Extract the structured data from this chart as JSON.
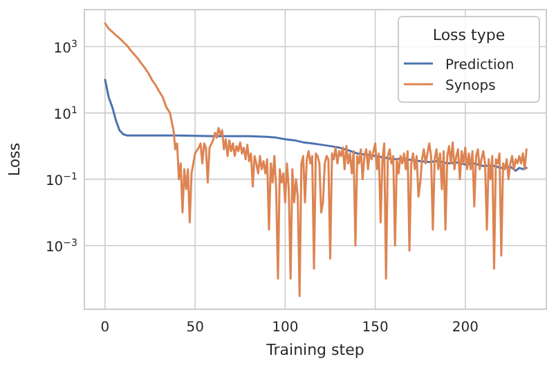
{
  "chart_data": {
    "type": "line",
    "xlabel": "Training step",
    "ylabel": "Loss",
    "legend_title": "Loss type",
    "legend": "top right",
    "grid": true,
    "log": "y",
    "xlim": [
      -11.5,
      245
    ],
    "xticks": [
      0,
      50,
      100,
      150,
      200
    ],
    "ylim": [
      1.2e-05,
      13000
    ],
    "yticks": [
      {
        "value": 0.001,
        "label": "10$^{−3}$"
      },
      {
        "value": 0.1,
        "label": "10$^{−1}$"
      },
      {
        "value": 10,
        "label": "10$^{1}$"
      },
      {
        "value": 1000,
        "label": "10$^{3}$"
      }
    ],
    "series": [
      {
        "name": "Prediction",
        "color": "#4c72b0",
        "x": [
          0,
          2,
          4,
          6,
          8,
          10,
          12,
          16,
          20,
          30,
          40,
          50,
          60,
          70,
          80,
          90,
          95,
          100,
          105,
          110,
          115,
          120,
          125,
          130,
          135,
          140,
          145,
          150,
          155,
          160,
          165,
          170,
          175,
          180,
          185,
          190,
          195,
          200,
          205,
          210,
          215,
          220,
          225,
          228,
          230,
          232,
          234
        ],
        "values": [
          100,
          30,
          15,
          6,
          3,
          2.3,
          2.1,
          2.1,
          2.1,
          2.1,
          2.1,
          2.05,
          2,
          2,
          2,
          1.9,
          1.8,
          1.6,
          1.5,
          1.3,
          1.2,
          1.1,
          1,
          0.9,
          0.75,
          0.6,
          0.55,
          0.5,
          0.45,
          0.4,
          0.42,
          0.38,
          0.35,
          0.33,
          0.36,
          0.3,
          0.32,
          0.28,
          0.3,
          0.25,
          0.26,
          0.22,
          0.24,
          0.18,
          0.22,
          0.2,
          0.22
        ]
      },
      {
        "name": "Synops",
        "color": "#dd8452",
        "x": [
          0,
          2,
          4,
          6,
          8,
          10,
          12,
          14,
          16,
          18,
          20,
          22,
          24,
          26,
          28,
          30,
          32,
          34,
          36,
          38,
          39,
          40,
          41,
          42,
          43,
          44,
          45,
          46,
          47,
          48,
          49,
          50,
          52,
          53,
          54,
          55,
          56,
          57,
          58,
          60,
          61,
          62,
          63,
          64,
          65,
          66,
          67,
          68,
          69,
          70,
          71,
          72,
          73,
          74,
          75,
          76,
          77,
          78,
          79,
          80,
          81,
          82,
          83,
          84,
          85,
          86,
          87,
          88,
          89,
          90,
          91,
          92,
          93,
          94,
          95,
          96,
          97,
          98,
          99,
          100,
          101,
          102,
          103,
          104,
          105,
          106,
          107,
          108,
          109,
          110,
          111,
          112,
          113,
          114,
          115,
          116,
          117,
          118,
          119,
          120,
          121,
          122,
          123,
          124,
          125,
          126,
          127,
          128,
          129,
          130,
          131,
          132,
          133,
          134,
          135,
          136,
          137,
          138,
          139,
          140,
          141,
          142,
          143,
          144,
          145,
          146,
          147,
          148,
          150,
          151,
          152,
          153,
          154,
          155,
          156,
          157,
          158,
          159,
          160,
          161,
          162,
          163,
          164,
          165,
          166,
          167,
          168,
          169,
          170,
          171,
          172,
          173,
          174,
          175,
          176,
          177,
          178,
          179,
          180,
          181,
          182,
          183,
          184,
          185,
          186,
          187,
          188,
          189,
          190,
          191,
          192,
          193,
          194,
          195,
          196,
          197,
          198,
          199,
          200,
          201,
          202,
          203,
          204,
          205,
          206,
          207,
          208,
          209,
          210,
          211,
          212,
          213,
          214,
          215,
          216,
          217,
          218,
          219,
          220,
          221,
          222,
          223,
          224,
          225,
          226,
          227,
          228,
          229,
          230,
          231,
          232,
          233,
          234
        ],
        "values": [
          5000,
          3500,
          2800,
          2200,
          1800,
          1400,
          1100,
          800,
          600,
          450,
          320,
          230,
          160,
          100,
          70,
          45,
          30,
          15,
          10,
          3,
          0.8,
          1.2,
          0.1,
          0.3,
          0.01,
          0.2,
          0.05,
          0.2,
          0.005,
          0.15,
          0.3,
          0.6,
          0.9,
          1.2,
          0.3,
          1.2,
          0.9,
          0.08,
          0.9,
          1.5,
          2.5,
          1.8,
          3.5,
          2.2,
          3,
          0.8,
          1.6,
          0.5,
          1.5,
          0.7,
          1.2,
          0.5,
          1,
          0.7,
          1.3,
          0.6,
          0.9,
          0.4,
          1.1,
          0.35,
          0.6,
          0.06,
          0.5,
          0.3,
          0.15,
          0.5,
          0.2,
          0.35,
          0.15,
          0.4,
          0.003,
          0.3,
          0.08,
          0.5,
          0.05,
          0.0001,
          0.2,
          0.08,
          0.15,
          0.02,
          0.3,
          0.05,
          0.0001,
          0.2,
          0.02,
          0.1,
          0.03,
          3e-05,
          0.3,
          0.5,
          0.02,
          0.4,
          0.7,
          0.3,
          0.5,
          0.0002,
          0.6,
          0.5,
          0.3,
          0.01,
          0.02,
          0.3,
          0.5,
          0.4,
          0.0004,
          0.6,
          0.4,
          0.9,
          0.3,
          0.7,
          0.5,
          0.9,
          0.2,
          1,
          0.3,
          0.6,
          0.15,
          0.7,
          0.001,
          0.5,
          0.3,
          0.8,
          0.1,
          0.5,
          0.8,
          0.2,
          0.7,
          0.4,
          1.2,
          0.2,
          0.6,
          0.005,
          0.4,
          1.2,
          0.0001,
          0.5,
          0.8,
          0.3,
          0.5,
          0.001,
          0.4,
          0.15,
          0.5,
          0.3,
          0.6,
          0.2,
          0.7,
          0.0007,
          0.3,
          0.6,
          0.2,
          0.5,
          0.03,
          0.08,
          0.4,
          0.8,
          0.3,
          0.6,
          1.2,
          0.5,
          0.003,
          0.4,
          0.8,
          0.2,
          0.6,
          0.05,
          0.7,
          0.003,
          0.5,
          1,
          0.3,
          1.3,
          0.2,
          0.5,
          0.8,
          0.1,
          0.7,
          0.3,
          0.9,
          0.2,
          0.6,
          0.2,
          0.7,
          0.015,
          0.5,
          0.8,
          0.2,
          0.4,
          0.7,
          0.3,
          0.003,
          0.4,
          0.1,
          0.5,
          0.0002,
          0.4,
          0.3,
          0.6,
          0.0005,
          0.3,
          0.2,
          0.4,
          0.1,
          0.3,
          0.5,
          0.2,
          0.4,
          0.3,
          0.5,
          0.3,
          0.6,
          0.2,
          0.8
        ]
      }
    ]
  }
}
